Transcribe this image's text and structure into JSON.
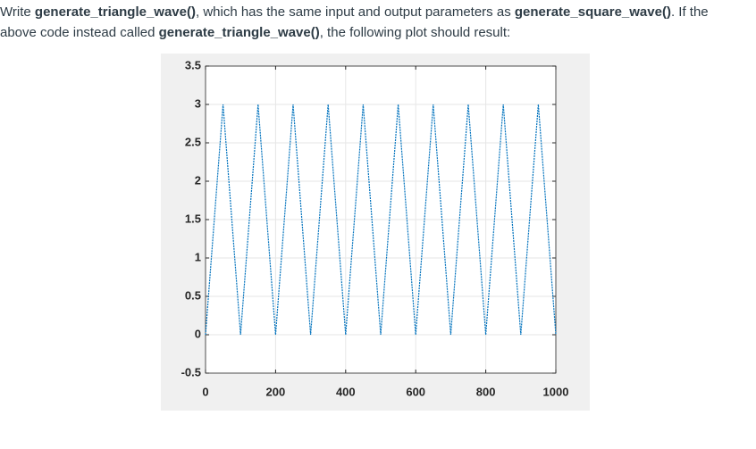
{
  "lines": [
    [
      {
        "text": "Write ",
        "bold": false
      },
      {
        "text": "generate_triangle_wave()",
        "bold": true
      },
      {
        "text": ", which has the same input and output parameters as ",
        "bold": false
      },
      {
        "text": "generate_square_wave()",
        "bold": true
      },
      {
        "text": ".  If the",
        "bold": false
      }
    ],
    [
      {
        "text": "above code instead called ",
        "bold": false
      },
      {
        "text": "generate_triangle_wave()",
        "bold": true
      },
      {
        "text": ", the following plot should result:",
        "bold": false
      }
    ]
  ],
  "chart_data": {
    "type": "line",
    "x": [
      0,
      50,
      100,
      150,
      200,
      250,
      300,
      350,
      400,
      450,
      500,
      550,
      600,
      650,
      700,
      750,
      800,
      850,
      900,
      950,
      1000
    ],
    "series": [
      {
        "color": "#0072bd",
        "values": [
          0,
          3,
          0,
          3,
          0,
          3,
          0,
          3,
          0,
          3,
          0,
          3,
          0,
          3,
          0,
          3,
          0,
          3,
          0,
          3,
          0
        ]
      }
    ],
    "xlim": [
      0,
      1000
    ],
    "xticks": [
      0,
      200,
      400,
      600,
      800,
      1000
    ],
    "ylim": [
      -0.5,
      3.5
    ],
    "yticks": [
      -0.5,
      0,
      0.5,
      1,
      1.5,
      2,
      2.5,
      3,
      3.5
    ],
    "grid": true
  }
}
